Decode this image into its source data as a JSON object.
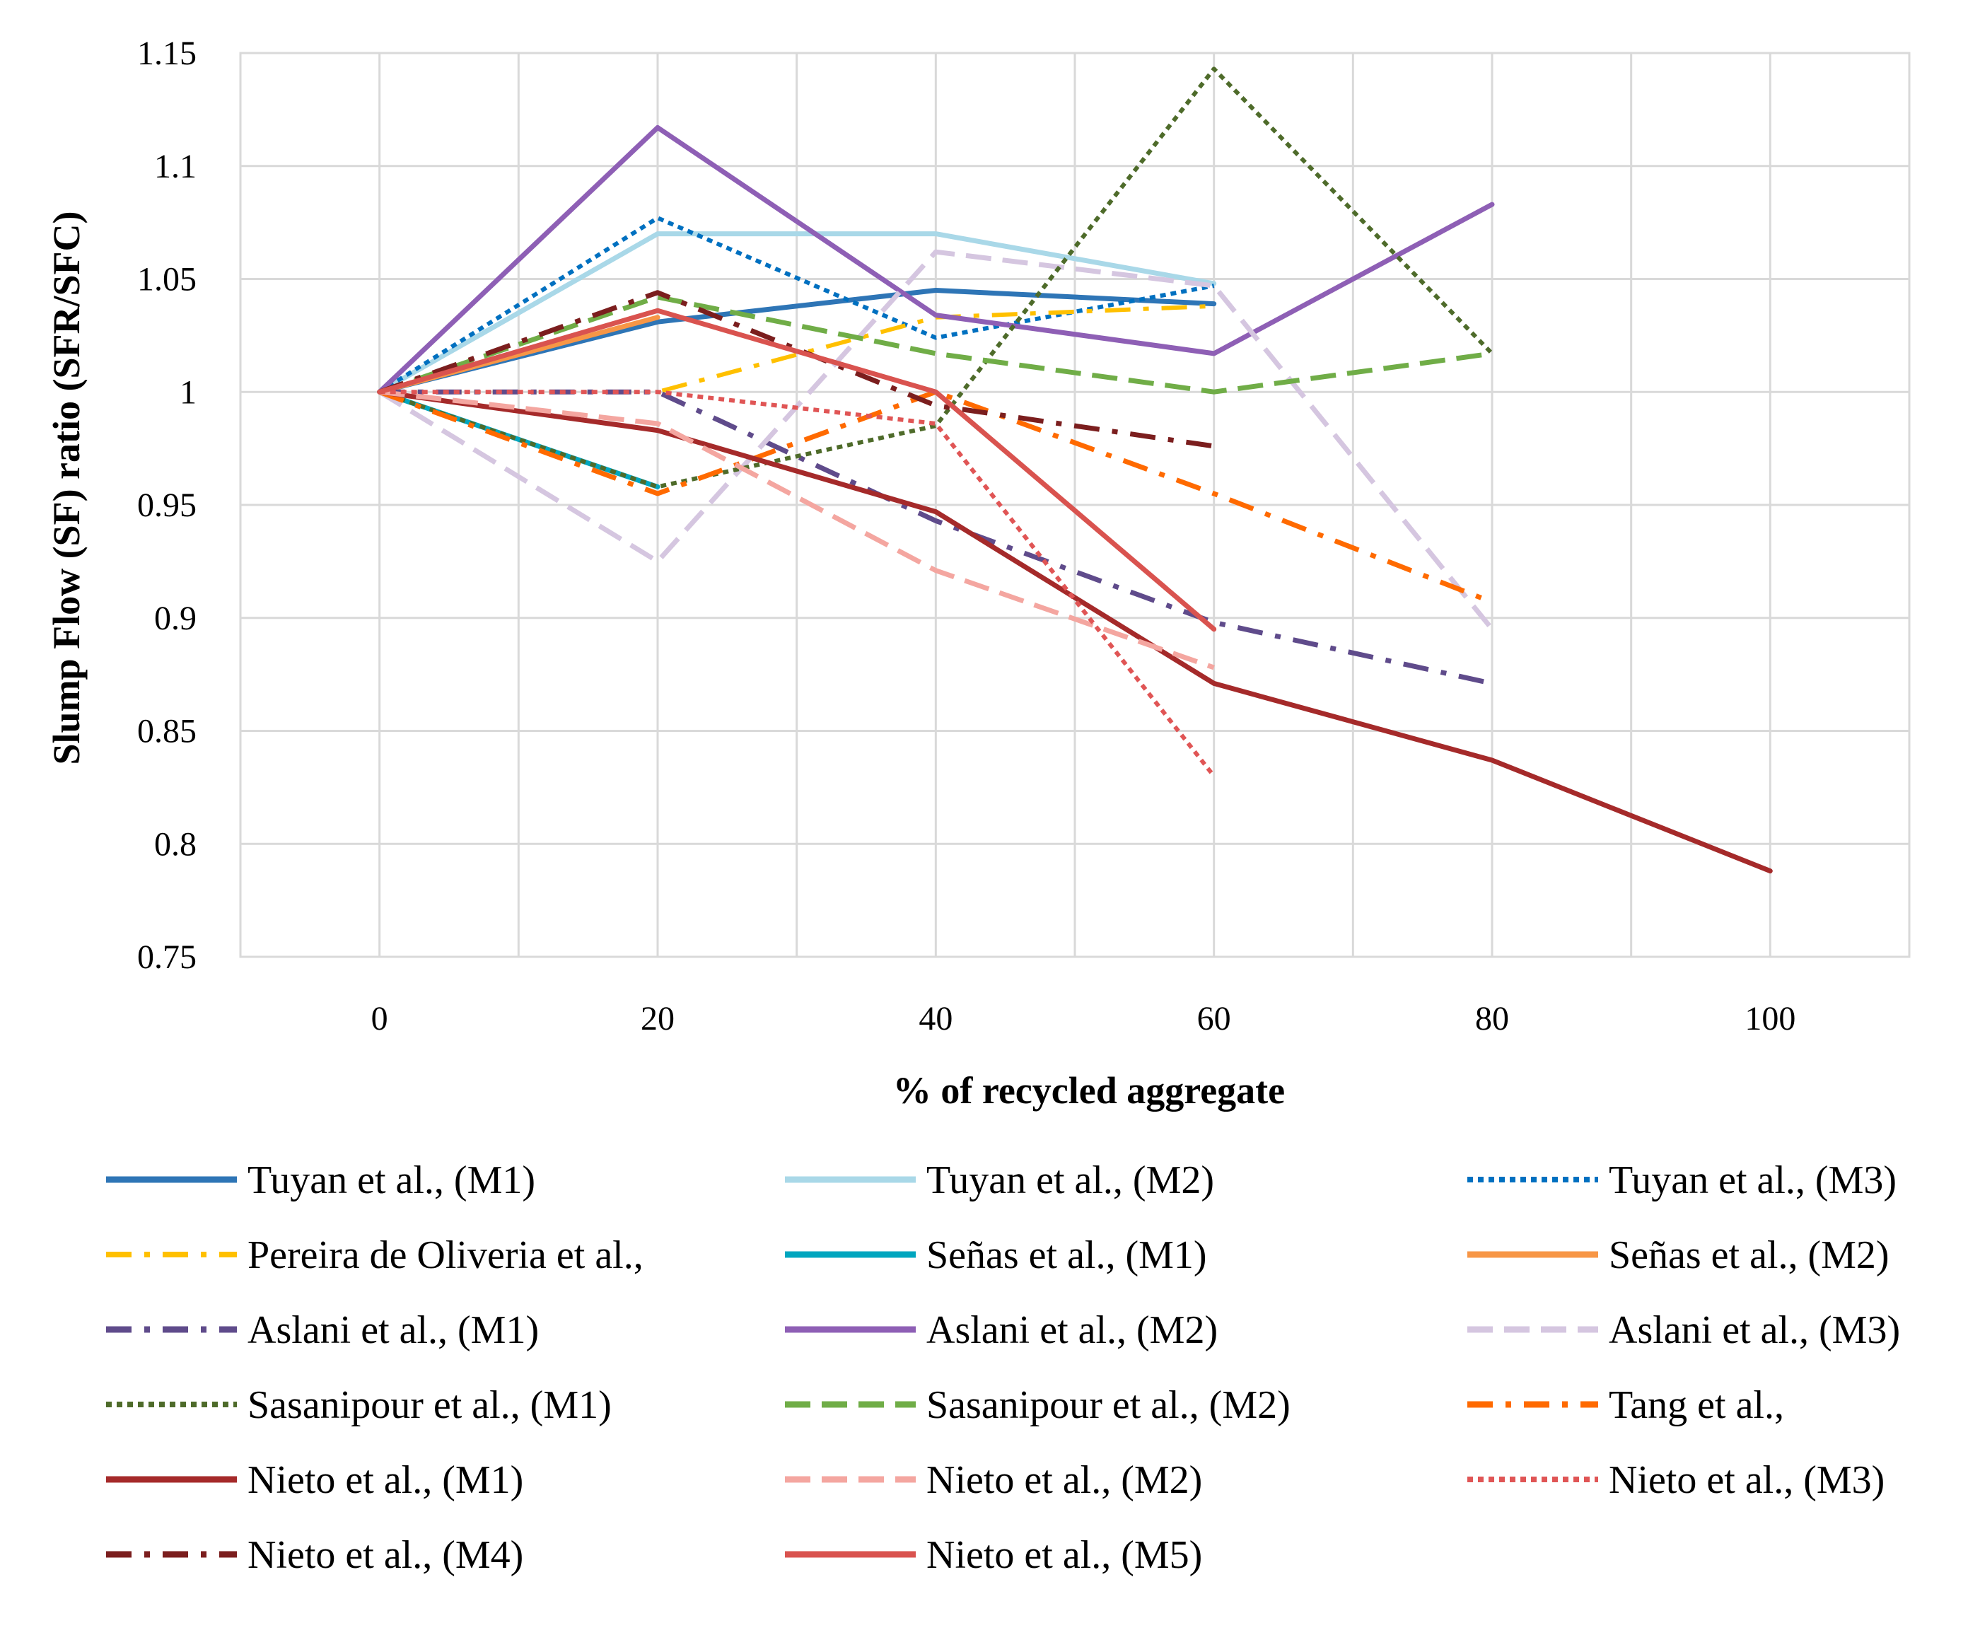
{
  "chart_data": {
    "type": "line",
    "title": "",
    "xlabel": "% of recycled aggregate",
    "ylabel": "Slump Flow (SF) ratio (SFR/SFC)",
    "xlim": [
      -10,
      110
    ],
    "ylim": [
      0.75,
      1.15
    ],
    "x_ticks": [
      "0",
      "20",
      "40",
      "60",
      "80",
      "100"
    ],
    "y_ticks": [
      "0.75",
      "0.8",
      "0.85",
      "0.9",
      "0.95",
      "1",
      "1.05",
      "1.1",
      "1.15"
    ],
    "grid": true,
    "legend_position": "bottom",
    "series": [
      {
        "name": "Tuyan et al., (M1)",
        "color": "#2E75B6",
        "dash": "solid",
        "width": 7,
        "x": [
          0,
          20,
          40,
          60
        ],
        "y": [
          1.0,
          1.031,
          1.045,
          1.039
        ]
      },
      {
        "name": "Tuyan et al., (M2)",
        "color": "#A9D8E8",
        "dash": "solid",
        "width": 7,
        "x": [
          0,
          20,
          40,
          60
        ],
        "y": [
          1.0,
          1.07,
          1.07,
          1.048
        ]
      },
      {
        "name": "Tuyan et al., (M3)",
        "color": "#0070C0",
        "dash": "dot",
        "width": 6,
        "x": [
          0,
          20,
          40,
          60
        ],
        "y": [
          1.0,
          1.077,
          1.024,
          1.047
        ]
      },
      {
        "name": "Pereira de Oliveria et al.,",
        "color": "#FFC000",
        "dash": "dashdot",
        "width": 6,
        "x": [
          0,
          20,
          40,
          60
        ],
        "y": [
          1.0,
          1.0,
          1.033,
          1.038
        ]
      },
      {
        "name": "Señas et al., (M1)",
        "color": "#00A6BF",
        "dash": "solid",
        "width": 7,
        "x": [
          0,
          20
        ],
        "y": [
          1.0,
          0.958
        ]
      },
      {
        "name": "Señas et al., (M2)",
        "color": "#F79646",
        "dash": "solid",
        "width": 7,
        "x": [
          0,
          20
        ],
        "y": [
          1.0,
          1.033
        ]
      },
      {
        "name": "Aslani et al., (M1)",
        "color": "#5F4B8B",
        "dash": "dashdot",
        "width": 7,
        "x": [
          0,
          20,
          40,
          60,
          80
        ],
        "y": [
          1.0,
          1.0,
          0.943,
          0.898,
          0.871
        ]
      },
      {
        "name": "Aslani et al., (M2)",
        "color": "#8E5FB5",
        "dash": "solid",
        "width": 7,
        "x": [
          0,
          20,
          40,
          60,
          80
        ],
        "y": [
          1.0,
          1.117,
          1.034,
          1.017,
          1.083
        ]
      },
      {
        "name": "Aslani et al., (M3)",
        "color": "#D5C6E0",
        "dash": "dash",
        "width": 7,
        "x": [
          0,
          20,
          40,
          60,
          80
        ],
        "y": [
          1.0,
          0.925,
          1.062,
          1.047,
          0.895
        ]
      },
      {
        "name": "Sasanipour et al., (M1)",
        "color": "#4E6B2A",
        "dash": "dot",
        "width": 6,
        "x": [
          0,
          20,
          40,
          60,
          80
        ],
        "y": [
          1.0,
          0.958,
          0.985,
          1.143,
          1.017
        ]
      },
      {
        "name": "Sasanipour et al., (M2)",
        "color": "#70AD47",
        "dash": "dash",
        "width": 7,
        "x": [
          0,
          20,
          40,
          60,
          80
        ],
        "y": [
          1.0,
          1.042,
          1.017,
          1.0,
          1.017
        ]
      },
      {
        "name": "Tang et al.,",
        "color": "#FF6A00",
        "dash": "dashdot",
        "width": 7,
        "x": [
          0,
          20,
          40,
          60,
          80
        ],
        "y": [
          1.0,
          0.955,
          1.0,
          0.955,
          0.907
        ]
      },
      {
        "name": "Nieto et al., (M1)",
        "color": "#A52A2A",
        "dash": "solid",
        "width": 7,
        "x": [
          0,
          20,
          40,
          60,
          80,
          100
        ],
        "y": [
          1.0,
          0.983,
          0.947,
          0.871,
          0.837,
          0.788
        ]
      },
      {
        "name": "Nieto et al., (M2)",
        "color": "#F4A6A0",
        "dash": "dash",
        "width": 7,
        "x": [
          0,
          20,
          40,
          60
        ],
        "y": [
          1.0,
          0.986,
          0.921,
          0.878
        ]
      },
      {
        "name": "Nieto et al., (M3)",
        "color": "#E05555",
        "dash": "dot",
        "width": 6,
        "x": [
          0,
          20,
          40,
          60
        ],
        "y": [
          1.0,
          1.0,
          0.986,
          0.83
        ]
      },
      {
        "name": "Nieto et al., (M4)",
        "color": "#7B1E1E",
        "dash": "dashdot",
        "width": 7,
        "x": [
          0,
          20,
          40,
          60
        ],
        "y": [
          1.0,
          1.044,
          0.994,
          0.976
        ]
      },
      {
        "name": "Nieto et al., (M5)",
        "color": "#D9534F",
        "dash": "solid",
        "width": 7,
        "x": [
          0,
          20,
          40,
          60
        ],
        "y": [
          1.0,
          1.036,
          1.0,
          0.895
        ]
      }
    ]
  }
}
